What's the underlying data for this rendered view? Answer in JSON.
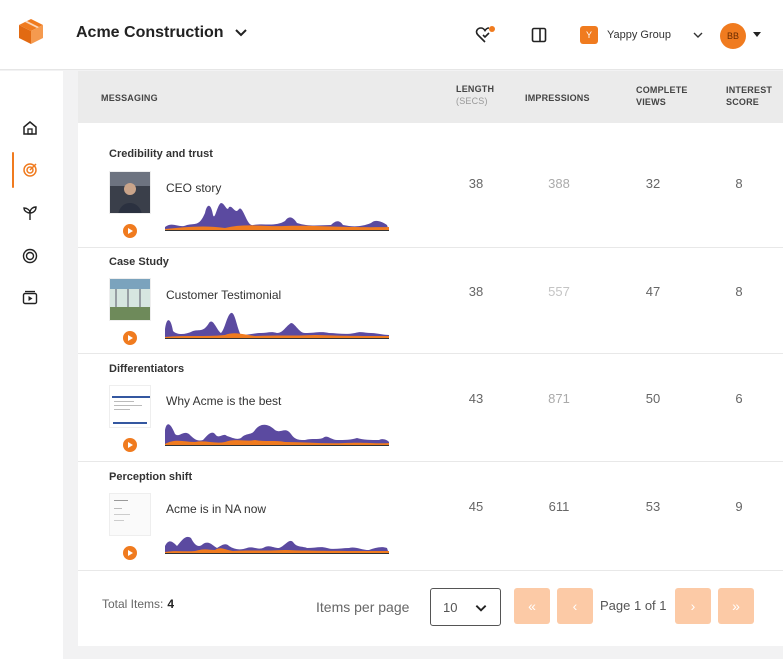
{
  "header": {
    "company_name": "Acme Construction",
    "group_badge": "Y",
    "group_name": "Yappy Group",
    "avatar_initials": "BB",
    "notification_color": "#f07b1f"
  },
  "sidebar": {
    "items": [
      {
        "name": "home-icon",
        "active": false
      },
      {
        "name": "target-icon",
        "active": true
      },
      {
        "name": "plant-icon",
        "active": false
      },
      {
        "name": "circle-icon",
        "active": false
      },
      {
        "name": "video-icon",
        "active": false
      }
    ]
  },
  "table": {
    "columns": {
      "messaging": "MESSAGING",
      "length": "LENGTH",
      "length_sub": "(SECS)",
      "impressions": "IMPRESSIONS",
      "complete_views_1": "COMPLETE",
      "complete_views_2": "VIEWS",
      "interest_1": "INTEREST",
      "interest_2": "SCORE"
    },
    "rows": [
      {
        "category": "Credibility and trust",
        "video": "CEO story",
        "length": "38",
        "impressions": "388",
        "complete_views": "32",
        "interest_score": "8"
      },
      {
        "category": "Case Study",
        "video": "Customer Testimonial",
        "length": "38",
        "impressions": "557",
        "complete_views": "47",
        "interest_score": "8"
      },
      {
        "category": "Differentiators",
        "video": "Why Acme is the best",
        "length": "43",
        "impressions": "871",
        "complete_views": "50",
        "interest_score": "6"
      },
      {
        "category": "Perception shift",
        "video": "Acme is in NA now",
        "length": "45",
        "impressions": "611",
        "complete_views": "53",
        "interest_score": "9"
      }
    ]
  },
  "footer": {
    "total_label": "Total Items:",
    "total_value": "4",
    "items_per_page_label": "Items per page",
    "items_per_page_value": "10",
    "first_label": "«",
    "prev_label": "‹",
    "page_info": "Page 1 of 1",
    "next_label": "›",
    "last_label": "»"
  },
  "colors": {
    "accent": "#f07b1f",
    "accent_light": "#fccaa6",
    "spark_purple": "#5b4aa0",
    "spark_orange": "#f07b1f"
  }
}
